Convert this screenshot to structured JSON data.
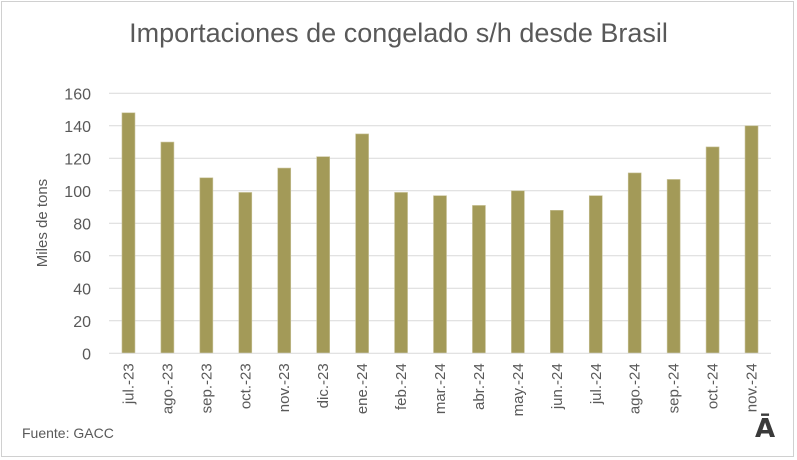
{
  "chart_data": {
    "type": "bar",
    "title": "Importaciones de congelado s/h desde Brasil",
    "xlabel": "",
    "ylabel": "Miles de tons",
    "ylim": [
      0,
      160
    ],
    "yticks": [
      0,
      20,
      40,
      60,
      80,
      100,
      120,
      140,
      160
    ],
    "grid": true,
    "categories": [
      "jul.-23",
      "ago.-23",
      "sep.-23",
      "oct.-23",
      "nov.-23",
      "dic.-23",
      "ene.-24",
      "feb.-24",
      "mar.-24",
      "abr.-24",
      "may.-24",
      "jun.-24",
      "jul.-24",
      "ago.-24",
      "sep.-24",
      "oct.-24",
      "nov.-24"
    ],
    "values": [
      148,
      130,
      108,
      99,
      114,
      121,
      135,
      99,
      97,
      91,
      100,
      88,
      97,
      111,
      107,
      127,
      140
    ],
    "bar_color": "#a39a58"
  },
  "footer": {
    "source": "Fuente: GACC",
    "logo_text": "Ā"
  }
}
